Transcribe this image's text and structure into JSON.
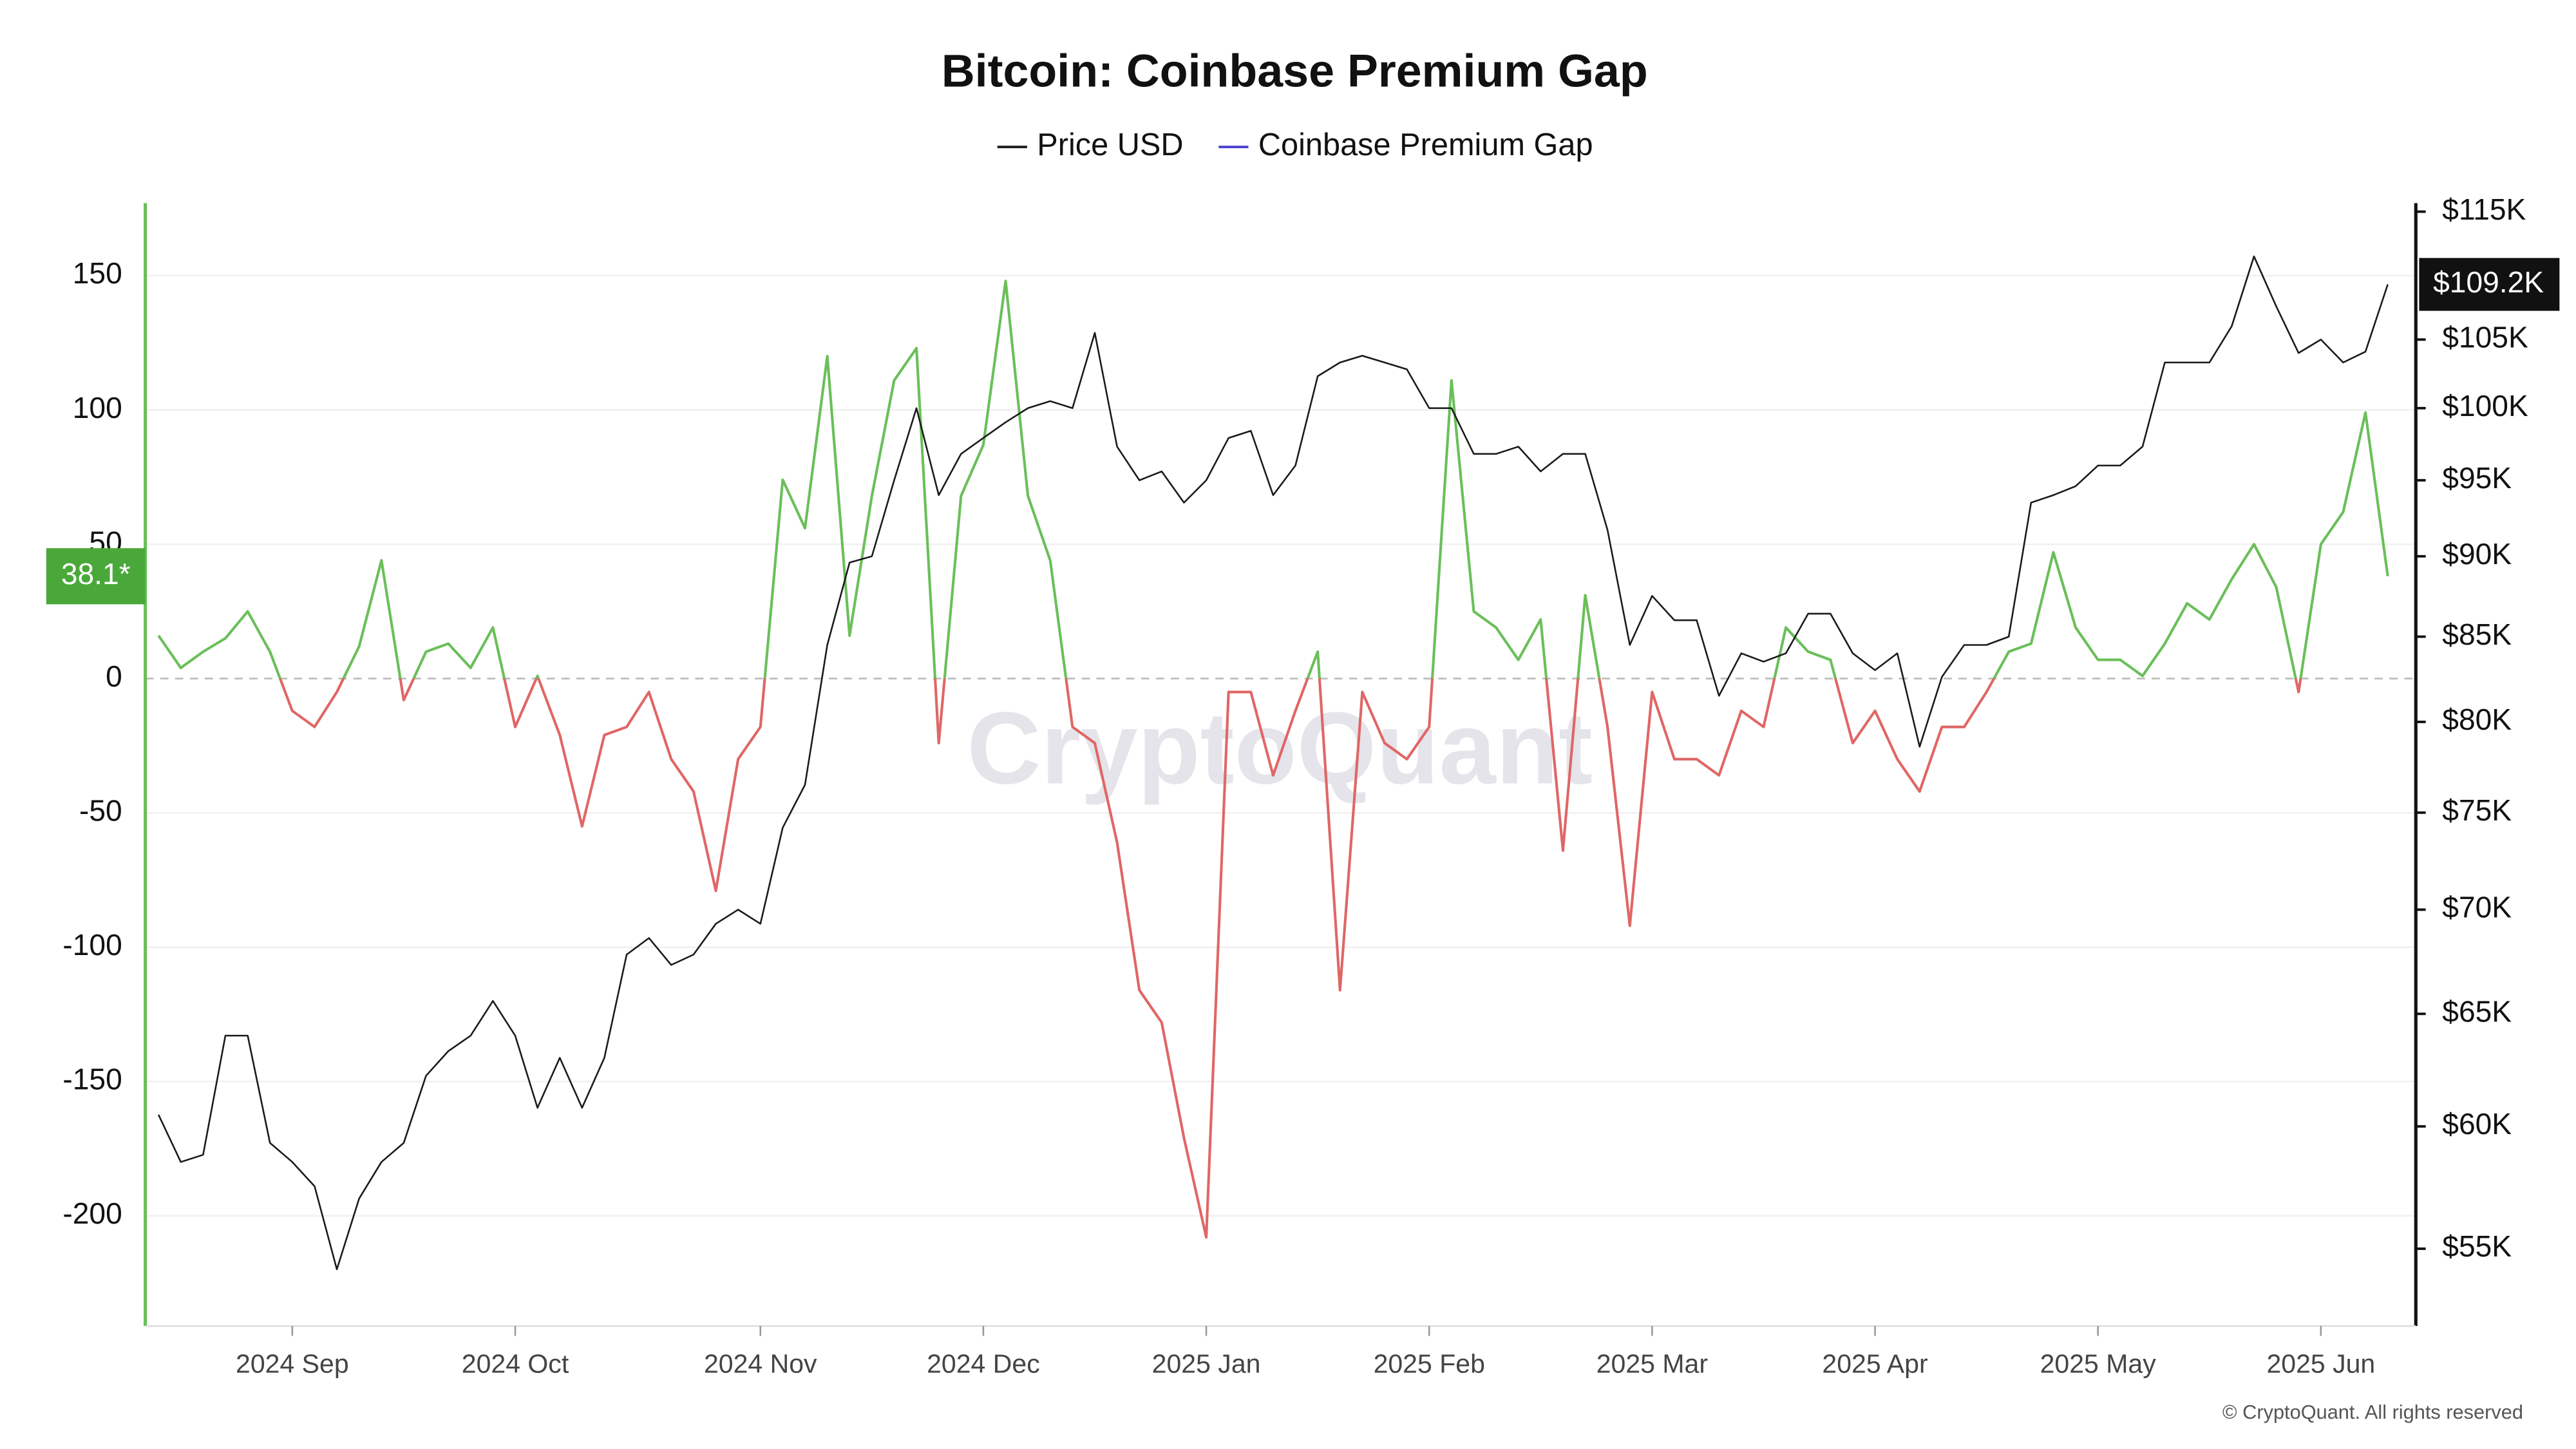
{
  "chart_data": {
    "type": "line",
    "title": "Bitcoin: Coinbase Premium Gap",
    "watermark": "CryptoQuant",
    "copyright": "© CryptoQuant. All rights reserved",
    "categories": [
      null,
      null,
      null,
      null,
      null,
      null,
      "2024 Sep",
      null,
      null,
      null,
      null,
      null,
      null,
      null,
      null,
      null,
      "2024 Oct",
      null,
      null,
      null,
      null,
      null,
      null,
      null,
      null,
      null,
      null,
      "2024 Nov",
      null,
      null,
      null,
      null,
      null,
      null,
      null,
      null,
      null,
      "2024 Dec",
      null,
      null,
      null,
      null,
      null,
      null,
      null,
      null,
      null,
      "2025 Jan",
      null,
      null,
      null,
      null,
      null,
      null,
      null,
      null,
      null,
      "2025 Feb",
      null,
      null,
      null,
      null,
      null,
      null,
      null,
      null,
      null,
      "2025 Mar",
      null,
      null,
      null,
      null,
      null,
      null,
      null,
      null,
      null,
      "2025 Apr",
      null,
      null,
      null,
      null,
      null,
      null,
      null,
      null,
      null,
      "2025 May",
      null,
      null,
      null,
      null,
      null,
      null,
      null,
      null,
      null,
      "2025 Jun",
      null,
      null,
      null
    ],
    "series": [
      {
        "name": "Price USD",
        "color": "#1a1a1a",
        "axis": "y2",
        "last_label": "$109.2K",
        "values": [
          60500,
          58500,
          58800,
          64000,
          64000,
          59300,
          58500,
          57500,
          54200,
          57000,
          58500,
          59300,
          62200,
          63300,
          64000,
          65600,
          64000,
          60800,
          63000,
          60800,
          63000,
          67800,
          68600,
          67300,
          67800,
          69300,
          70000,
          69300,
          74200,
          76500,
          84500,
          89600,
          90000,
          95000,
          100000,
          94000,
          96800,
          97900,
          99000,
          100000,
          100500,
          100000,
          105500,
          97300,
          95000,
          95600,
          93500,
          95000,
          97900,
          98400,
          94000,
          96000,
          102300,
          103300,
          103800,
          103300,
          102800,
          100000,
          100000,
          96800,
          96800,
          97300,
          95600,
          96800,
          96800,
          91700,
          84500,
          87500,
          86000,
          86000,
          81500,
          84000,
          83500,
          84000,
          86400,
          86400,
          84000,
          83000,
          84000,
          78600,
          82600,
          84500,
          84500,
          85000,
          93500,
          94000,
          94600,
          96000,
          96000,
          97300,
          103300,
          103300,
          103300,
          106000,
          111400,
          107500,
          104000,
          105000,
          103300,
          104100,
          109200
        ]
      },
      {
        "name": "Coinbase Premium Gap",
        "color": "#4a3fcf",
        "positive_color": "#6abf5a",
        "negative_color": "#e06666",
        "last_label": "38.1*",
        "values": [
          16,
          4,
          10,
          15,
          25,
          10,
          -12,
          -18,
          -5,
          12,
          44,
          -8,
          10,
          13,
          4,
          19,
          -18,
          1,
          -21,
          -55,
          -21,
          -18,
          -5,
          -30,
          -42,
          -79,
          -30,
          -18,
          74,
          56,
          120,
          16,
          68,
          111,
          123,
          -24,
          68,
          87,
          148,
          68,
          44,
          -18,
          -24,
          -61,
          -116,
          -128,
          -171,
          -208,
          -5,
          -5,
          -36,
          -12,
          10,
          -116,
          -5,
          -24,
          -30,
          -18,
          111,
          25,
          19,
          7,
          22,
          -64,
          31,
          -18,
          -92,
          -5,
          -30,
          -30,
          -36,
          -12,
          -18,
          19,
          10,
          7,
          -24,
          -12,
          -30,
          -42,
          -18,
          -18,
          -5,
          10,
          13,
          47,
          19,
          7,
          7,
          1,
          13,
          28,
          22,
          37,
          50,
          34,
          -5,
          50,
          62,
          99,
          38.1
        ]
      }
    ],
    "ylim": [
      -241,
      177
    ],
    "yticks": [
      -200,
      -150,
      -100,
      -50,
      0,
      50,
      100,
      150
    ],
    "y2lim": [
      52060,
      115700
    ],
    "y2log": true,
    "y2ticks": [
      {
        "value": 55000,
        "label": "$55K"
      },
      {
        "value": 60000,
        "label": "$60K"
      },
      {
        "value": 65000,
        "label": "$65K"
      },
      {
        "value": 70000,
        "label": "$70K"
      },
      {
        "value": 75000,
        "label": "$75K"
      },
      {
        "value": 80000,
        "label": "$80K"
      },
      {
        "value": 85000,
        "label": "$85K"
      },
      {
        "value": 90000,
        "label": "$90K"
      },
      {
        "value": 95000,
        "label": "$95K"
      },
      {
        "value": 100000,
        "label": "$100K"
      },
      {
        "value": 105000,
        "label": "$105K"
      },
      {
        "value": 115000,
        "label": "$115K"
      }
    ],
    "grid": true
  }
}
